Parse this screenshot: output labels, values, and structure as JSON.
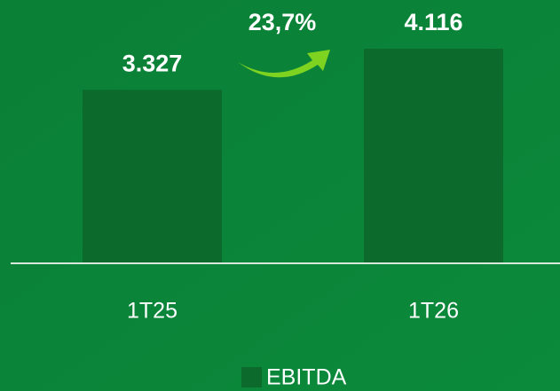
{
  "chart_data": {
    "type": "bar",
    "categories": [
      "1T25",
      "1T26"
    ],
    "series": [
      {
        "name": "EBITDA",
        "color": "#0b6a2c",
        "values": [
          3327,
          4116
        ],
        "value_labels": [
          "3.327",
          "4.116"
        ]
      }
    ],
    "annotation": "23,7%",
    "ylim": [
      0,
      5000
    ]
  }
}
